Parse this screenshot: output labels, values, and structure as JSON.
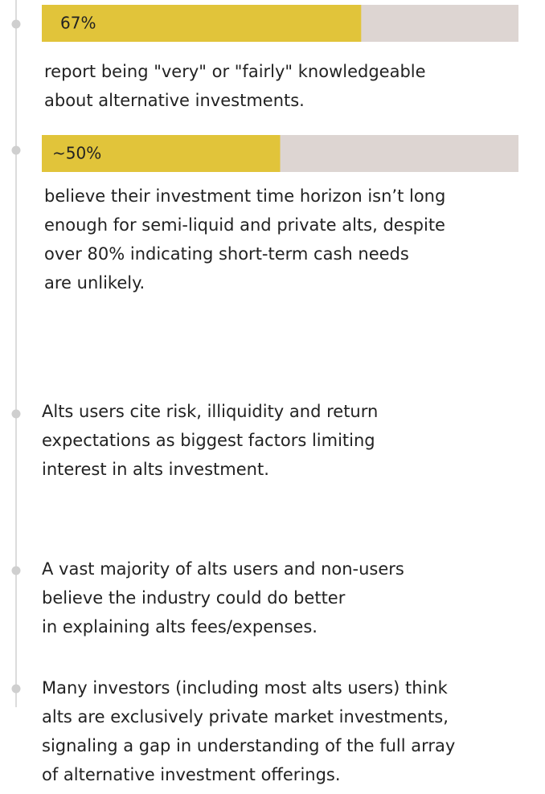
{
  "xlim": [
    0,
    100
  ],
  "items": [
    {
      "bar": {
        "value": 67,
        "label": "67%"
      },
      "lines": [
        "report being \"very\" or \"fairly\" knowledgeable",
        "about alternative investments."
      ]
    },
    {
      "bar": {
        "value": 50,
        "label": "~50%"
      },
      "lines": [
        "believe their investment time horizon isn’t long",
        "enough for semi-liquid and private alts, despite",
        "over 80% indicating short-term cash needs",
        "are unlikely."
      ]
    },
    {
      "lines": [
        "Alts users cite risk, illiquidity and return",
        "expectations as biggest factors limiting",
        "interest in alts investment."
      ]
    },
    {
      "lines": [
        "A vast majority of alts users and non-users",
        "believe the industry could do better",
        "in explaining alts fees/expenses."
      ]
    },
    {
      "lines": [
        "Many investors (including most alts users) think",
        "alts are exclusively private market investments,",
        "signaling a gap in understanding of the full array",
        "of alternative investment offerings."
      ]
    }
  ]
}
